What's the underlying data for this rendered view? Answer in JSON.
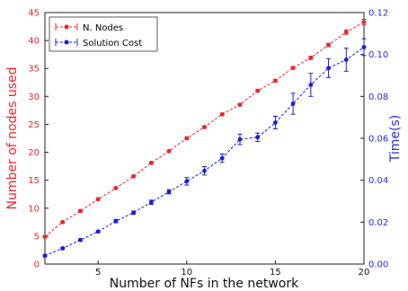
{
  "chart_data": {
    "type": "line",
    "title": "",
    "xlabel": "Number of NFs in the network",
    "ylabel_left": "Number of nodes used",
    "ylabel_right": "Time(s)",
    "x": [
      2,
      3,
      4,
      5,
      6,
      7,
      8,
      9,
      10,
      11,
      12,
      13,
      14,
      15,
      16,
      17,
      18,
      19,
      20
    ],
    "xlim": [
      2,
      20
    ],
    "x_ticks": [
      5,
      10,
      15,
      20
    ],
    "ylim_left": [
      0,
      45
    ],
    "y_left_ticks": [
      0,
      5,
      10,
      15,
      20,
      25,
      30,
      35,
      40,
      45
    ],
    "ylim_right": [
      0.0,
      0.12
    ],
    "y_right_ticks": [
      0.0,
      0.02,
      0.04,
      0.06,
      0.08,
      0.1,
      0.12
    ],
    "y_right_tick_labels": [
      "0.00",
      "0.02",
      "0.04",
      "0.06",
      "0.08",
      "0.10",
      "0.12"
    ],
    "legend_position": "top-left",
    "colors": {
      "nodes": "#e8262b",
      "cost": "#1c1cd8",
      "left_axis": "#e8262b",
      "right_axis": "#2a2ae0"
    },
    "series": [
      {
        "name": "N. Nodes",
        "axis": "left",
        "values": [
          4.9,
          7.5,
          9.5,
          11.6,
          13.6,
          15.7,
          18.1,
          20.2,
          22.5,
          24.5,
          26.8,
          28.5,
          31.0,
          32.8,
          35.1,
          36.9,
          39.2,
          41.5,
          43.3
        ],
        "errors": [
          0.2,
          0.2,
          0.2,
          0.2,
          0.2,
          0.2,
          0.2,
          0.2,
          0.2,
          0.2,
          0.2,
          0.2,
          0.2,
          0.2,
          0.2,
          0.3,
          0.3,
          0.4,
          0.5
        ]
      },
      {
        "name": "Solution Cost",
        "axis": "right",
        "values": [
          0.004,
          0.0075,
          0.0115,
          0.0155,
          0.0205,
          0.0245,
          0.0295,
          0.0345,
          0.0395,
          0.0445,
          0.0505,
          0.0595,
          0.0605,
          0.0675,
          0.0765,
          0.0855,
          0.0935,
          0.0975,
          0.1035
        ],
        "errors": [
          0.0005,
          0.0005,
          0.0005,
          0.0005,
          0.0008,
          0.0008,
          0.001,
          0.001,
          0.0018,
          0.002,
          0.002,
          0.0025,
          0.002,
          0.003,
          0.005,
          0.0055,
          0.0045,
          0.0055,
          0.004
        ]
      }
    ]
  }
}
